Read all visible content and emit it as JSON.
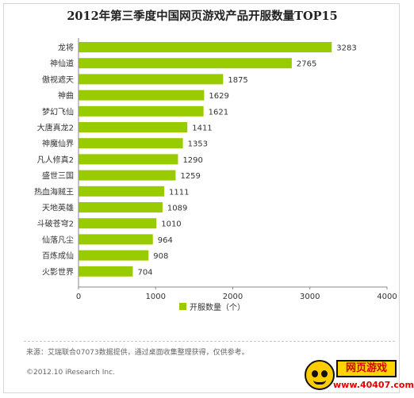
{
  "chart_data": {
    "type": "bar",
    "orientation": "horizontal",
    "title": "2012年第三季度中国网页游戏产品开服数量TOP15",
    "categories": [
      "龙将",
      "神仙道",
      "傲视遮天",
      "神曲",
      "梦幻飞仙",
      "大唐真龙2",
      "神魔仙界",
      "凡人修真2",
      "盛世三国",
      "热血海贼王",
      "天地英雄",
      "斗破苍穹2",
      "仙落凡尘",
      "百炼成仙",
      "火影世界"
    ],
    "series": [
      {
        "name": "开服数量（个）",
        "values": [
          3283,
          2765,
          1875,
          1629,
          1621,
          1411,
          1353,
          1290,
          1259,
          1111,
          1089,
          1010,
          964,
          908,
          704
        ]
      }
    ],
    "xlim": [
      0,
      4000
    ],
    "xticks": [
      0,
      1000,
      2000,
      3000,
      4000
    ],
    "bar_color": "#99cc00",
    "grid": false,
    "legend_position": "bottom-center"
  },
  "footer": {
    "source": "来源：艾瑞联合07073数据提供，通过桌面收集整理获得，仅供参考。",
    "copyright": "©2012.10 iResearch Inc."
  },
  "watermark": {
    "title": "网页游戏",
    "url": "www.40407.com"
  }
}
